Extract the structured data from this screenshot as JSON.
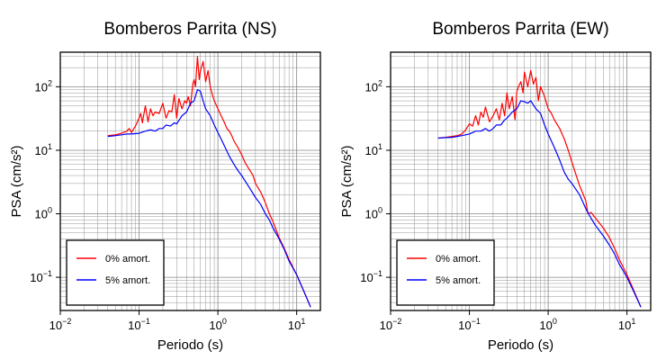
{
  "chart_data": [
    {
      "type": "line",
      "title": "Bomberos Parrita (NS)",
      "xlabel": "Periodo (s)",
      "ylabel": "PSA (cm/s²)",
      "xscale": "log",
      "yscale": "log",
      "xlim": [
        0.01,
        20
      ],
      "ylim": [
        0.03,
        350
      ],
      "xticks": [
        0.01,
        0.1,
        1,
        10
      ],
      "xtick_labels": [
        {
          "base": "10",
          "exp": "−2"
        },
        {
          "base": "10",
          "exp": "−1"
        },
        {
          "base": "10",
          "exp": "0"
        },
        {
          "base": "10",
          "exp": "1"
        }
      ],
      "yticks": [
        0.1,
        1,
        10,
        100
      ],
      "ytick_labels": [
        {
          "base": "10",
          "exp": "−1"
        },
        {
          "base": "10",
          "exp": "0"
        },
        {
          "base": "10",
          "exp": "1"
        },
        {
          "base": "10",
          "exp": "2"
        }
      ],
      "grid": true,
      "legend_position": "bottom-left",
      "series": [
        {
          "name": "0% amort.",
          "color": "#ff0000",
          "x": [
            0.04,
            0.05,
            0.06,
            0.07,
            0.075,
            0.08,
            0.09,
            0.1,
            0.105,
            0.11,
            0.12,
            0.13,
            0.14,
            0.15,
            0.16,
            0.18,
            0.2,
            0.22,
            0.24,
            0.26,
            0.28,
            0.3,
            0.32,
            0.35,
            0.38,
            0.4,
            0.42,
            0.45,
            0.48,
            0.5,
            0.52,
            0.55,
            0.58,
            0.6,
            0.65,
            0.7,
            0.75,
            0.8,
            0.85,
            0.9,
            1.0,
            1.1,
            1.2,
            1.3,
            1.4,
            1.5,
            1.6,
            1.8,
            2.0,
            2.2,
            2.5,
            2.8,
            3.0,
            3.5,
            4.0,
            4.5,
            5,
            6,
            7,
            8,
            10,
            12,
            15
          ],
          "y": [
            17,
            17.5,
            18.5,
            20,
            22,
            19,
            24,
            32,
            38,
            27,
            50,
            28,
            45,
            35,
            40,
            38,
            55,
            32,
            42,
            40,
            75,
            32,
            65,
            45,
            60,
            55,
            70,
            50,
            110,
            130,
            100,
            300,
            130,
            180,
            250,
            120,
            180,
            100,
            75,
            60,
            45,
            35,
            28,
            22,
            20,
            17,
            14,
            11,
            8.5,
            6.5,
            5.0,
            4.0,
            3.0,
            2.2,
            1.5,
            1.0,
            0.75,
            0.42,
            0.28,
            0.19,
            0.11,
            0.065,
            0.034
          ]
        },
        {
          "name": "5% amort.",
          "color": "#0000ff",
          "x": [
            0.04,
            0.05,
            0.06,
            0.07,
            0.08,
            0.1,
            0.12,
            0.14,
            0.16,
            0.18,
            0.2,
            0.22,
            0.25,
            0.28,
            0.3,
            0.35,
            0.4,
            0.45,
            0.5,
            0.55,
            0.6,
            0.65,
            0.7,
            0.8,
            0.9,
            1.0,
            1.1,
            1.2,
            1.4,
            1.6,
            1.8,
            2.0,
            2.5,
            3.0,
            3.5,
            4.0,
            4.5,
            5,
            6,
            7,
            8,
            10,
            12,
            15
          ],
          "y": [
            16.5,
            17,
            17.5,
            18,
            18,
            18.5,
            20,
            21,
            20,
            22,
            22,
            25,
            24,
            27,
            26,
            35,
            40,
            55,
            60,
            90,
            85,
            60,
            45,
            35,
            25,
            19,
            15,
            12,
            8,
            6,
            4.8,
            4.0,
            2.6,
            1.8,
            1.4,
            1.0,
            0.8,
            0.6,
            0.4,
            0.27,
            0.18,
            0.11,
            0.065,
            0.034
          ]
        }
      ]
    },
    {
      "type": "line",
      "title": "Bomberos Parrita (EW)",
      "xlabel": "Periodo (s)",
      "ylabel": "PSA (cm/s²)",
      "xscale": "log",
      "yscale": "log",
      "xlim": [
        0.01,
        20
      ],
      "ylim": [
        0.03,
        350
      ],
      "xticks": [
        0.01,
        0.1,
        1,
        10
      ],
      "xtick_labels": [
        {
          "base": "10",
          "exp": "−2"
        },
        {
          "base": "10",
          "exp": "−1"
        },
        {
          "base": "10",
          "exp": "0"
        },
        {
          "base": "10",
          "exp": "1"
        }
      ],
      "yticks": [
        0.1,
        1,
        10,
        100
      ],
      "ytick_labels": [
        {
          "base": "10",
          "exp": "−1"
        },
        {
          "base": "10",
          "exp": "0"
        },
        {
          "base": "10",
          "exp": "1"
        },
        {
          "base": "10",
          "exp": "2"
        }
      ],
      "grid": true,
      "legend_position": "bottom-left",
      "series": [
        {
          "name": "0% amort.",
          "color": "#ff0000",
          "x": [
            0.04,
            0.05,
            0.06,
            0.07,
            0.08,
            0.09,
            0.1,
            0.11,
            0.12,
            0.13,
            0.14,
            0.15,
            0.16,
            0.18,
            0.2,
            0.22,
            0.24,
            0.26,
            0.28,
            0.3,
            0.32,
            0.35,
            0.38,
            0.4,
            0.42,
            0.45,
            0.48,
            0.5,
            0.55,
            0.6,
            0.65,
            0.7,
            0.75,
            0.8,
            0.9,
            1.0,
            1.1,
            1.2,
            1.4,
            1.6,
            1.8,
            2.0,
            2.2,
            2.5,
            3.0,
            3.2,
            3.5,
            4,
            5,
            6,
            7,
            8,
            10,
            12,
            15
          ],
          "y": [
            15.5,
            16,
            16.5,
            17,
            18,
            21,
            26,
            24,
            35,
            25,
            40,
            33,
            48,
            28,
            35,
            45,
            30,
            55,
            35,
            80,
            45,
            70,
            30,
            85,
            100,
            120,
            80,
            170,
            100,
            180,
            110,
            140,
            60,
            100,
            70,
            45,
            38,
            30,
            22,
            15,
            10,
            6.5,
            4.5,
            2.8,
            1.6,
            1.0,
            1.05,
            0.85,
            0.6,
            0.42,
            0.28,
            0.19,
            0.11,
            0.065,
            0.034
          ]
        },
        {
          "name": "5% amort.",
          "color": "#0000ff",
          "x": [
            0.04,
            0.05,
            0.06,
            0.07,
            0.08,
            0.1,
            0.12,
            0.14,
            0.16,
            0.18,
            0.2,
            0.22,
            0.25,
            0.28,
            0.3,
            0.35,
            0.4,
            0.45,
            0.5,
            0.55,
            0.6,
            0.7,
            0.8,
            0.9,
            1.0,
            1.2,
            1.4,
            1.6,
            1.8,
            2.0,
            2.5,
            3.0,
            3.5,
            4,
            5,
            6,
            7,
            8,
            10,
            12,
            15
          ],
          "y": [
            15.5,
            15.8,
            16,
            16.5,
            17,
            18,
            20,
            20,
            22,
            20,
            22,
            25,
            25,
            30,
            32,
            40,
            45,
            60,
            58,
            55,
            60,
            45,
            38,
            25,
            18,
            11,
            7,
            4.5,
            3.5,
            3.0,
            2.0,
            1.2,
            0.85,
            0.65,
            0.45,
            0.32,
            0.23,
            0.16,
            0.1,
            0.062,
            0.034
          ]
        }
      ]
    }
  ]
}
